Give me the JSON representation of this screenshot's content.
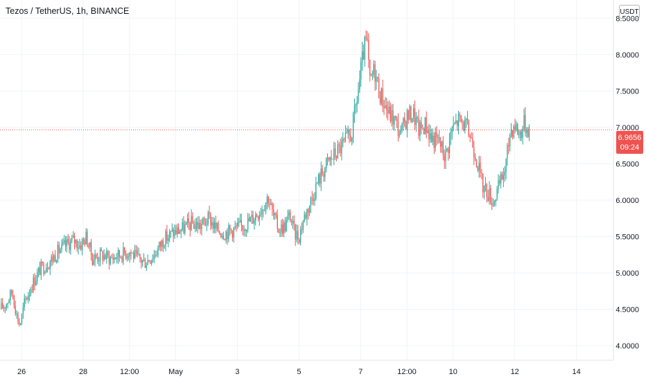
{
  "header": {
    "title": "Tezos / TetherUS, 1h, BINANCE",
    "currency": "USDT"
  },
  "last_price": {
    "value": "6.9656",
    "countdown": "09:24",
    "color": "#ef5350"
  },
  "colors": {
    "up": "#26a69a",
    "down": "#ef5350",
    "grid": "#f0f3fa",
    "axis_text": "#131722"
  },
  "chart_data": {
    "type": "candlestick",
    "title": "Tezos / TetherUS, 1h, BINANCE",
    "ylim": [
      3.8,
      8.75
    ],
    "y_ticks": [
      "4.0000",
      "4.5000",
      "5.0000",
      "5.5000",
      "6.0000",
      "6.5000",
      "7.0000",
      "7.5000",
      "8.0000",
      "8.5000"
    ],
    "x_ticks": [
      {
        "label": "26",
        "day": 1.0
      },
      {
        "label": "28",
        "day": 3.0
      },
      {
        "label": "12:00",
        "day": 4.5
      },
      {
        "label": "May",
        "day": 6.0
      },
      {
        "label": "3",
        "day": 8.0
      },
      {
        "label": "5",
        "day": 10.0
      },
      {
        "label": "7",
        "day": 12.0
      },
      {
        "label": "12:00",
        "day": 13.5
      },
      {
        "label": "10",
        "day": 15.0
      },
      {
        "label": "12",
        "day": 17.0
      },
      {
        "label": "14",
        "day": 19.0
      }
    ],
    "x_range_days": [
      0.3,
      20.2
    ],
    "last_day": 17.5,
    "grid": true,
    "close_path": [
      [
        0.3,
        4.5
      ],
      [
        0.5,
        4.58
      ],
      [
        0.7,
        4.75
      ],
      [
        0.85,
        4.4
      ],
      [
        0.95,
        4.28
      ],
      [
        1.1,
        4.6
      ],
      [
        1.35,
        4.85
      ],
      [
        1.6,
        5.05
      ],
      [
        1.9,
        5.15
      ],
      [
        2.2,
        5.3
      ],
      [
        2.5,
        5.4
      ],
      [
        2.7,
        5.45
      ],
      [
        2.9,
        5.38
      ],
      [
        3.1,
        5.5
      ],
      [
        3.3,
        5.2
      ],
      [
        3.6,
        5.25
      ],
      [
        3.9,
        5.2
      ],
      [
        4.2,
        5.25
      ],
      [
        4.5,
        5.3
      ],
      [
        4.75,
        5.2
      ],
      [
        5.0,
        5.15
      ],
      [
        5.3,
        5.25
      ],
      [
        5.6,
        5.45
      ],
      [
        5.9,
        5.55
      ],
      [
        6.2,
        5.6
      ],
      [
        6.5,
        5.68
      ],
      [
        6.8,
        5.65
      ],
      [
        7.1,
        5.75
      ],
      [
        7.3,
        5.6
      ],
      [
        7.6,
        5.55
      ],
      [
        7.9,
        5.6
      ],
      [
        8.2,
        5.65
      ],
      [
        8.5,
        5.75
      ],
      [
        8.8,
        5.9
      ],
      [
        9.0,
        6.05
      ],
      [
        9.15,
        5.8
      ],
      [
        9.35,
        5.6
      ],
      [
        9.55,
        5.65
      ],
      [
        9.7,
        5.8
      ],
      [
        9.85,
        5.55
      ],
      [
        10.0,
        5.5
      ],
      [
        10.15,
        5.75
      ],
      [
        10.35,
        5.95
      ],
      [
        10.6,
        6.25
      ],
      [
        10.9,
        6.5
      ],
      [
        11.2,
        6.65
      ],
      [
        11.5,
        6.8
      ],
      [
        11.7,
        6.9
      ],
      [
        11.85,
        7.3
      ],
      [
        12.0,
        7.75
      ],
      [
        12.1,
        8.05
      ],
      [
        12.2,
        8.2
      ],
      [
        12.3,
        7.6
      ],
      [
        12.45,
        7.8
      ],
      [
        12.6,
        7.5
      ],
      [
        12.75,
        7.35
      ],
      [
        12.9,
        7.2
      ],
      [
        13.1,
        7.1
      ],
      [
        13.3,
        6.9
      ],
      [
        13.5,
        7.15
      ],
      [
        13.7,
        7.2
      ],
      [
        13.9,
        6.95
      ],
      [
        14.1,
        7.05
      ],
      [
        14.3,
        6.85
      ],
      [
        14.55,
        6.8
      ],
      [
        14.75,
        6.6
      ],
      [
        14.95,
        6.95
      ],
      [
        15.15,
        7.1
      ],
      [
        15.35,
        7.05
      ],
      [
        15.55,
        6.9
      ],
      [
        15.75,
        6.6
      ],
      [
        15.95,
        6.2
      ],
      [
        16.15,
        6.1
      ],
      [
        16.3,
        5.98
      ],
      [
        16.5,
        6.2
      ],
      [
        16.7,
        6.45
      ],
      [
        16.85,
        6.95
      ],
      [
        17.0,
        7.05
      ],
      [
        17.15,
        6.9
      ],
      [
        17.3,
        7.05
      ],
      [
        17.45,
        6.98
      ],
      [
        17.5,
        6.9656
      ]
    ]
  }
}
